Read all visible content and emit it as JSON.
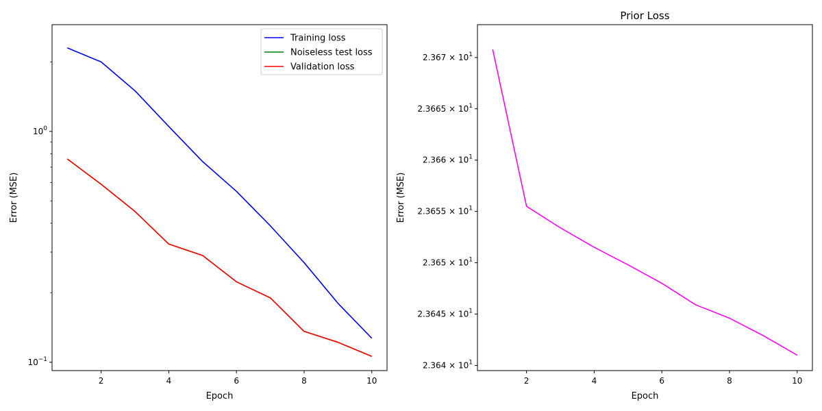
{
  "chart_data": [
    {
      "type": "line",
      "title": "",
      "xlabel": "Epoch",
      "ylabel": "Error (MSE)",
      "yscale": "log",
      "xlim": [
        0.55,
        10.45
      ],
      "ylim": [
        0.092,
        2.9
      ],
      "x": [
        1,
        2,
        3,
        4,
        5,
        6,
        7,
        8,
        9,
        10
      ],
      "xticks": [
        2,
        4,
        6,
        8,
        10
      ],
      "xtick_labels": [
        "2",
        "4",
        "6",
        "8",
        "10"
      ],
      "yticks": [
        {
          "value": 1.0,
          "base": "10",
          "exp": "0"
        },
        {
          "value": 0.1,
          "base": "10",
          "exp": "−1"
        }
      ],
      "grid": false,
      "legend_position": "upper right",
      "series": [
        {
          "name": "Training loss",
          "color": "#0000ff",
          "values": [
            2.3,
            2.0,
            1.5,
            1.05,
            0.74,
            0.55,
            0.39,
            0.27,
            0.18,
            0.127
          ]
        },
        {
          "name": "Noiseless test loss",
          "color": "#008000",
          "values": [
            0.76,
            0.59,
            0.45,
            0.325,
            0.29,
            0.223,
            0.19,
            0.136,
            0.122,
            0.106
          ]
        },
        {
          "name": "Validation loss",
          "color": "#ff0000",
          "values": [
            0.76,
            0.59,
            0.45,
            0.325,
            0.29,
            0.223,
            0.19,
            0.136,
            0.122,
            0.106
          ]
        }
      ]
    },
    {
      "type": "line",
      "title": "Prior Loss",
      "xlabel": "Epoch",
      "ylabel": "Error (MSE)",
      "yscale": "log",
      "xlim": [
        0.55,
        10.45
      ],
      "ylim": [
        23.6395,
        23.6732
      ],
      "x": [
        1,
        2,
        3,
        4,
        5,
        6,
        7,
        8,
        9,
        10
      ],
      "xticks": [
        2,
        4,
        6,
        8,
        10
      ],
      "xtick_labels": [
        "2",
        "4",
        "6",
        "8",
        "10"
      ],
      "yticks": [
        {
          "value": 23.64,
          "mantissa": "2.364",
          "base": "10",
          "exp": "1"
        },
        {
          "value": 23.645,
          "mantissa": "2.3645",
          "base": "10",
          "exp": "1"
        },
        {
          "value": 23.65,
          "mantissa": "2.365",
          "base": "10",
          "exp": "1"
        },
        {
          "value": 23.655,
          "mantissa": "2.3655",
          "base": "10",
          "exp": "1"
        },
        {
          "value": 23.66,
          "mantissa": "2.366",
          "base": "10",
          "exp": "1"
        },
        {
          "value": 23.665,
          "mantissa": "2.3665",
          "base": "10",
          "exp": "1"
        },
        {
          "value": 23.67,
          "mantissa": "2.367",
          "base": "10",
          "exp": "1"
        }
      ],
      "grid": false,
      "series": [
        {
          "color": "#ff00ff",
          "values": [
            23.6708,
            23.6555,
            23.6534,
            23.6515,
            23.6498,
            23.648,
            23.6459,
            23.6446,
            23.6429,
            23.641
          ]
        }
      ]
    }
  ]
}
